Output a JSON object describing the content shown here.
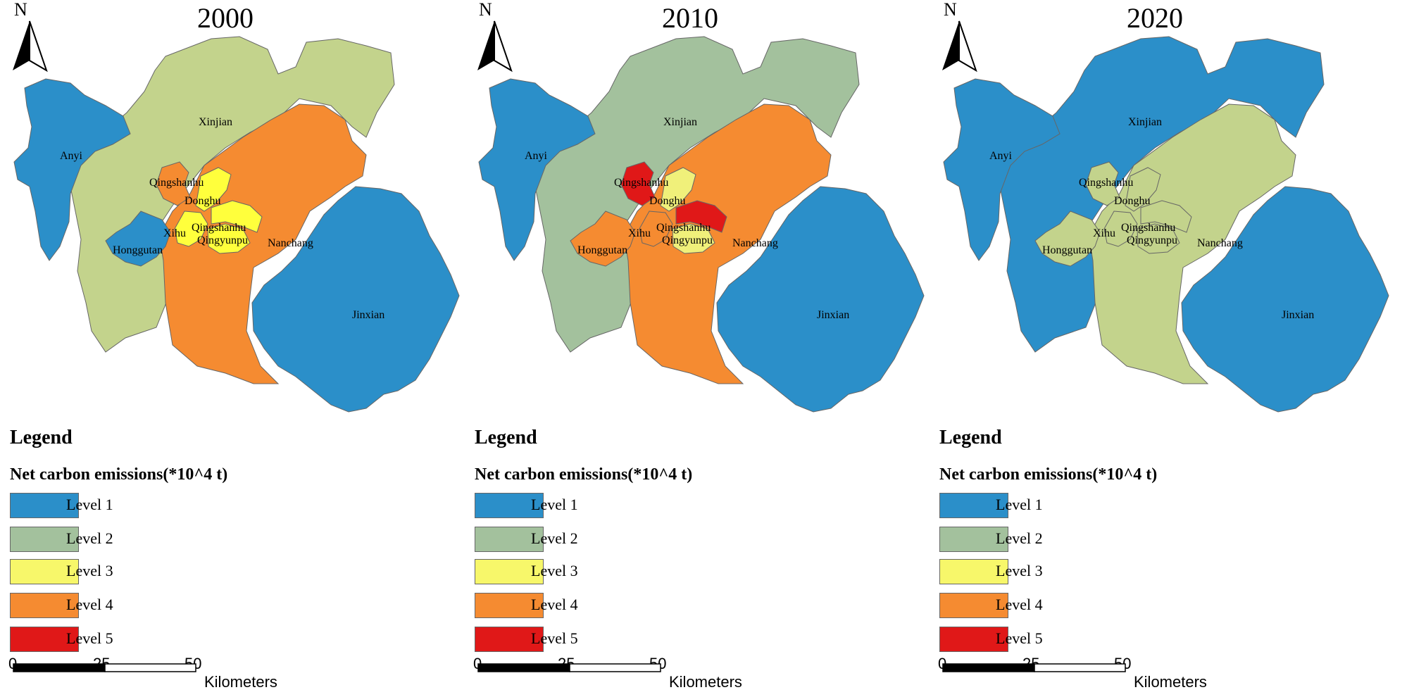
{
  "panels": [
    {
      "year": "2000",
      "fills": {
        "anyi": "#2b8fc9",
        "xinjian": "#c3d38c",
        "nanchang": "#f58b31",
        "jinxian": "#2b8fc9",
        "honggutan": "#2b8fc9",
        "qingshanhu_w": "#f58b31",
        "donghu": "#ffff3c",
        "xihu": "#ffff3c",
        "qingyunpu": "#ffff3c",
        "qingshanhu_e": "#ffff3c"
      }
    },
    {
      "year": "2010",
      "fills": {
        "anyi": "#2b8fc9",
        "xinjian": "#a3c19d",
        "nanchang": "#f58b31",
        "jinxian": "#2b8fc9",
        "honggutan": "#f58b31",
        "qingshanhu_w": "#e01818",
        "donghu": "#f0f07a",
        "xihu": "#f58b31",
        "qingyunpu": "#f0f07a",
        "qingshanhu_e": "#e01818"
      }
    },
    {
      "year": "2020",
      "fills": {
        "anyi": "#2b8fc9",
        "xinjian": "#2b8fc9",
        "nanchang": "#c3d38c",
        "jinxian": "#2b8fc9",
        "honggutan": "#c3d38c",
        "qingshanhu_w": "#c3d38c",
        "donghu": "#c3d38c",
        "xihu": "#c3d38c",
        "qingyunpu": "#c3d38c",
        "qingshanhu_e": "#c3d38c"
      }
    }
  ],
  "labels": {
    "north": "N",
    "anyi": "Anyi",
    "xinjian": "Xinjian",
    "nanchang": "Nanchang",
    "jinxian": "Jinxian",
    "honggutan": "Honggutan",
    "qingshanhu_w": "Qingshanhu",
    "donghu": "Donghu",
    "xihu": "Xihu",
    "qingshanhu_e": "Qingshanhu",
    "qingyunpu": "Qingyunpu"
  },
  "legend": {
    "title": "Legend",
    "subtitle": "Net carbon emissions(*10^4 t)",
    "levels": [
      {
        "label": "Level 1",
        "color": "#2b8fc9"
      },
      {
        "label": "Level 2",
        "color": "#a3c19d"
      },
      {
        "label": "Level 3",
        "color": "#f7f76a"
      },
      {
        "label": "Level 4",
        "color": "#f58b31"
      },
      {
        "label": "Level 5",
        "color": "#e01818"
      }
    ]
  },
  "scale": {
    "ticks": [
      "0",
      "25",
      "50"
    ],
    "unit": "Kilometers"
  }
}
